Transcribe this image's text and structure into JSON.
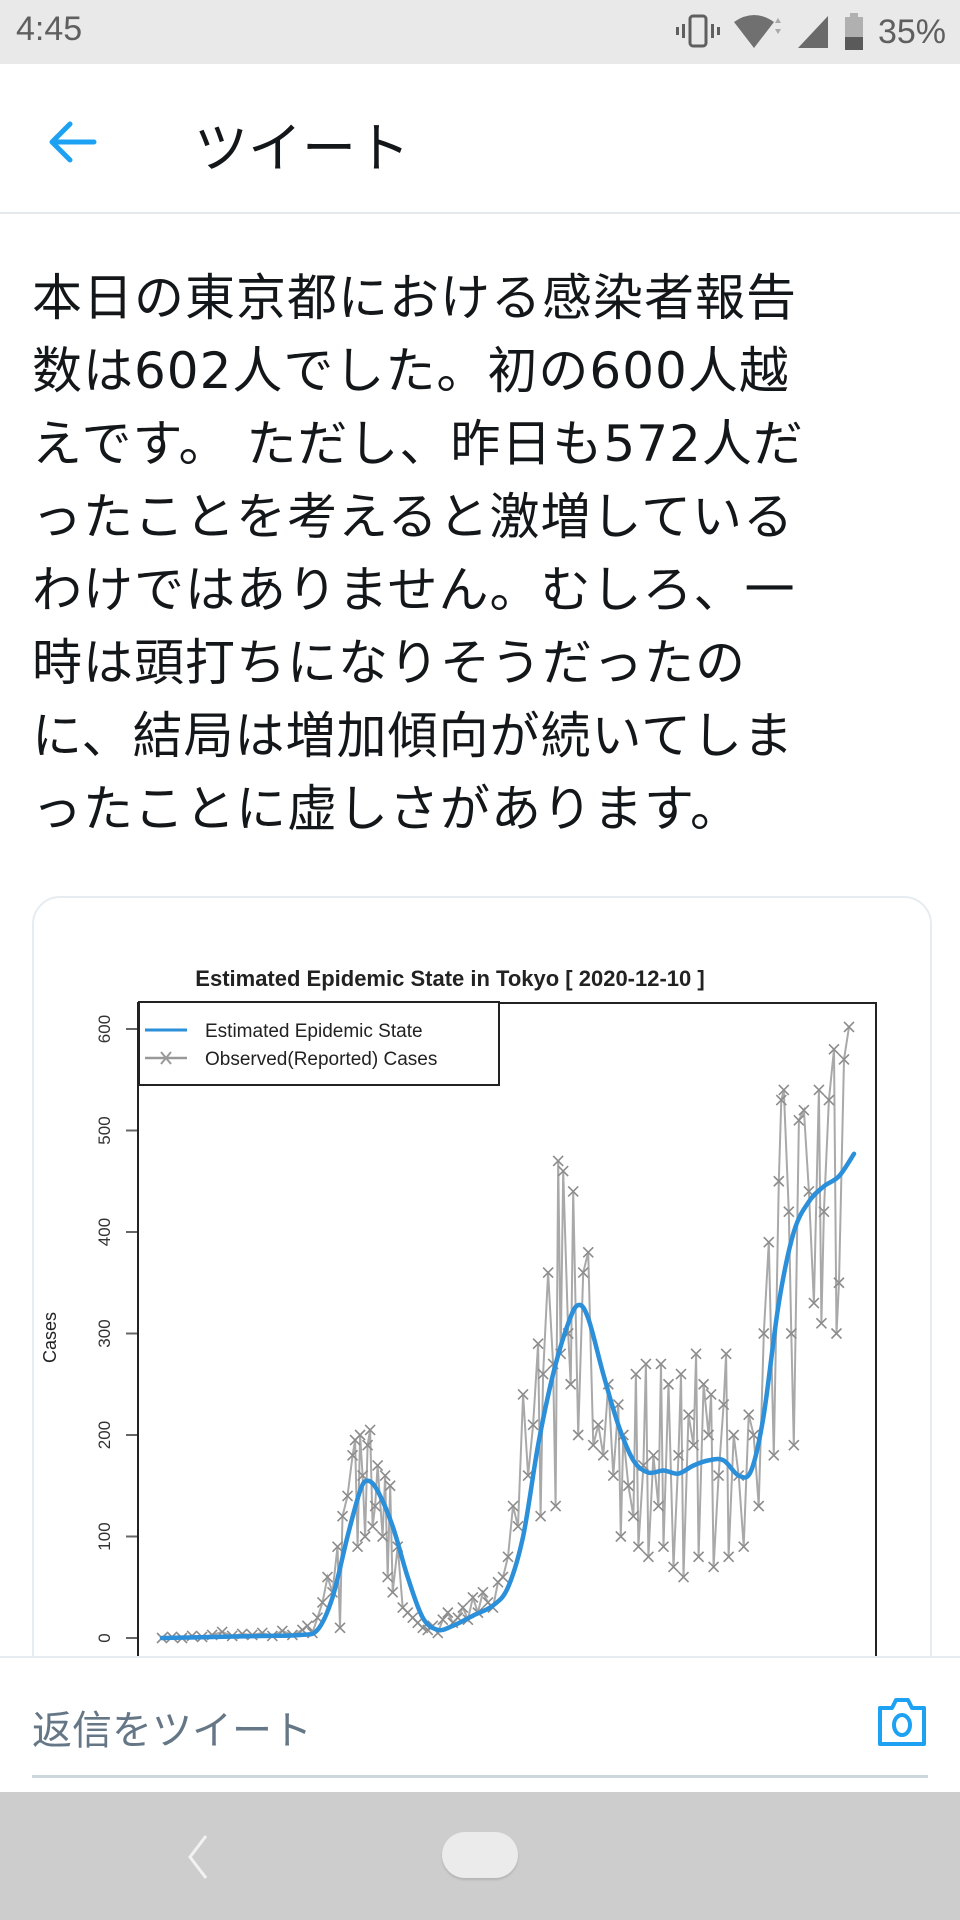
{
  "status_bar": {
    "time": "4:45",
    "icons": [
      "vibrate-icon",
      "wifi-icon",
      "cell-signal-icon",
      "battery-icon"
    ],
    "battery_percent": "35%"
  },
  "header": {
    "back_icon": "arrow-left-icon",
    "title": "ツイート"
  },
  "tweet": {
    "text": "本日の東京都における感染者報告\n数は602人でした。初の600人越\nえです。 ただし、昨日も572人だ\nったことを考えると激増している\nわけではありません。むしろ、一\n時は頭打ちになりそうだったの\nに、結局は増加傾向が続いてしま\nったことに虚しさがあります。"
  },
  "reply_bar": {
    "placeholder": "返信をツイート",
    "camera_icon": "camera-icon"
  },
  "nav_bar": {
    "back_icon": "nav-back-icon",
    "home_icon": "nav-home-pill"
  },
  "colors": {
    "accent": "#1da1f2",
    "estimated_line": "#2b8fd9",
    "observed_line": "#a9a9a9",
    "observed_marker": "#8c8c8c"
  },
  "chart_data": {
    "type": "line",
    "title": "Estimated Epidemic State in Tokyo [ 2020-12-10 ]",
    "xlabel": "",
    "ylabel": "Cases",
    "yticks": [
      0,
      100,
      200,
      300,
      400,
      500,
      600
    ],
    "ylim": [
      0,
      630
    ],
    "grid": false,
    "legend_position": "top-left",
    "legend": [
      "Estimated Epidemic State",
      "Observed(Reported) Cases"
    ],
    "x_note": "daily index (approx. Feb 2020 to 2020-12-10); lower axis cut off in screenshot",
    "series": [
      {
        "name": "Estimated Epidemic State",
        "style": "smooth-line",
        "points": [
          [
            0,
            0
          ],
          [
            20,
            1
          ],
          [
            40,
            2
          ],
          [
            55,
            3
          ],
          [
            62,
            8
          ],
          [
            68,
            40
          ],
          [
            74,
            100
          ],
          [
            79,
            145
          ],
          [
            82,
            155
          ],
          [
            86,
            145
          ],
          [
            92,
            110
          ],
          [
            98,
            60
          ],
          [
            104,
            20
          ],
          [
            110,
            8
          ],
          [
            116,
            12
          ],
          [
            124,
            22
          ],
          [
            132,
            32
          ],
          [
            138,
            50
          ],
          [
            144,
            100
          ],
          [
            150,
            190
          ],
          [
            156,
            260
          ],
          [
            162,
            310
          ],
          [
            166,
            328
          ],
          [
            170,
            315
          ],
          [
            176,
            260
          ],
          [
            182,
            210
          ],
          [
            188,
            175
          ],
          [
            194,
            163
          ],
          [
            200,
            165
          ],
          [
            206,
            162
          ],
          [
            212,
            170
          ],
          [
            218,
            175
          ],
          [
            224,
            175
          ],
          [
            230,
            160
          ],
          [
            235,
            165
          ],
          [
            240,
            220
          ],
          [
            246,
            330
          ],
          [
            252,
            400
          ],
          [
            258,
            430
          ],
          [
            264,
            445
          ],
          [
            270,
            455
          ],
          [
            276,
            477
          ]
        ]
      },
      {
        "name": "Observed(Reported) Cases",
        "style": "line-with-x-markers",
        "points": [
          [
            0,
            0
          ],
          [
            4,
            1
          ],
          [
            8,
            0
          ],
          [
            12,
            2
          ],
          [
            16,
            1
          ],
          [
            20,
            3
          ],
          [
            24,
            6
          ],
          [
            28,
            2
          ],
          [
            32,
            4
          ],
          [
            36,
            3
          ],
          [
            40,
            5
          ],
          [
            44,
            2
          ],
          [
            48,
            7
          ],
          [
            52,
            3
          ],
          [
            56,
            8
          ],
          [
            58,
            12
          ],
          [
            60,
            5
          ],
          [
            62,
            20
          ],
          [
            64,
            35
          ],
          [
            66,
            60
          ],
          [
            68,
            45
          ],
          [
            70,
            90
          ],
          [
            71,
            10
          ],
          [
            72,
            120
          ],
          [
            74,
            140
          ],
          [
            76,
            180
          ],
          [
            77,
            195
          ],
          [
            78,
            90
          ],
          [
            79,
            200
          ],
          [
            80,
            160
          ],
          [
            81,
            100
          ],
          [
            82,
            190
          ],
          [
            83,
            205
          ],
          [
            84,
            110
          ],
          [
            85,
            130
          ],
          [
            86,
            170
          ],
          [
            88,
            100
          ],
          [
            89,
            160
          ],
          [
            90,
            60
          ],
          [
            91,
            150
          ],
          [
            92,
            45
          ],
          [
            94,
            90
          ],
          [
            96,
            30
          ],
          [
            98,
            25
          ],
          [
            100,
            20
          ],
          [
            102,
            15
          ],
          [
            104,
            10
          ],
          [
            106,
            8
          ],
          [
            108,
            12
          ],
          [
            110,
            5
          ],
          [
            112,
            18
          ],
          [
            114,
            25
          ],
          [
            116,
            15
          ],
          [
            118,
            20
          ],
          [
            120,
            30
          ],
          [
            122,
            18
          ],
          [
            124,
            40
          ],
          [
            126,
            25
          ],
          [
            128,
            45
          ],
          [
            130,
            35
          ],
          [
            132,
            30
          ],
          [
            134,
            55
          ],
          [
            136,
            60
          ],
          [
            138,
            80
          ],
          [
            140,
            130
          ],
          [
            142,
            110
          ],
          [
            144,
            240
          ],
          [
            146,
            160
          ],
          [
            148,
            210
          ],
          [
            150,
            290
          ],
          [
            151,
            120
          ],
          [
            152,
            260
          ],
          [
            154,
            360
          ],
          [
            156,
            270
          ],
          [
            157,
            130
          ],
          [
            158,
            470
          ],
          [
            159,
            280
          ],
          [
            160,
            460
          ],
          [
            162,
            300
          ],
          [
            163,
            250
          ],
          [
            164,
            440
          ],
          [
            166,
            200
          ],
          [
            168,
            360
          ],
          [
            170,
            380
          ],
          [
            172,
            190
          ],
          [
            174,
            210
          ],
          [
            176,
            180
          ],
          [
            178,
            250
          ],
          [
            180,
            160
          ],
          [
            182,
            230
          ],
          [
            183,
            100
          ],
          [
            184,
            200
          ],
          [
            186,
            150
          ],
          [
            188,
            120
          ],
          [
            189,
            260
          ],
          [
            190,
            90
          ],
          [
            192,
            170
          ],
          [
            193,
            270
          ],
          [
            194,
            80
          ],
          [
            196,
            180
          ],
          [
            198,
            130
          ],
          [
            199,
            270
          ],
          [
            200,
            90
          ],
          [
            202,
            250
          ],
          [
            204,
            70
          ],
          [
            206,
            180
          ],
          [
            207,
            260
          ],
          [
            208,
            60
          ],
          [
            210,
            220
          ],
          [
            212,
            190
          ],
          [
            213,
            280
          ],
          [
            214,
            80
          ],
          [
            216,
            250
          ],
          [
            218,
            200
          ],
          [
            219,
            240
          ],
          [
            220,
            70
          ],
          [
            222,
            160
          ],
          [
            224,
            230
          ],
          [
            225,
            280
          ],
          [
            226,
            80
          ],
          [
            228,
            200
          ],
          [
            230,
            160
          ],
          [
            232,
            90
          ],
          [
            234,
            220
          ],
          [
            236,
            200
          ],
          [
            238,
            130
          ],
          [
            240,
            300
          ],
          [
            242,
            390
          ],
          [
            244,
            180
          ],
          [
            246,
            450
          ],
          [
            247,
            530
          ],
          [
            248,
            540
          ],
          [
            250,
            420
          ],
          [
            251,
            300
          ],
          [
            252,
            190
          ],
          [
            254,
            510
          ],
          [
            256,
            520
          ],
          [
            258,
            440
          ],
          [
            260,
            330
          ],
          [
            262,
            540
          ],
          [
            263,
            310
          ],
          [
            264,
            420
          ],
          [
            266,
            530
          ],
          [
            268,
            580
          ],
          [
            269,
            300
          ],
          [
            270,
            350
          ],
          [
            272,
            570
          ],
          [
            274,
            602
          ]
        ]
      }
    ]
  }
}
